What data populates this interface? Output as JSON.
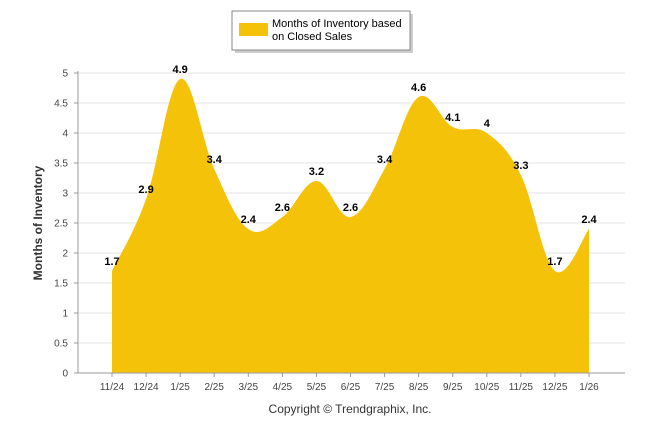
{
  "chart_data": {
    "type": "area",
    "categories": [
      "11/24",
      "12/24",
      "1/25",
      "2/25",
      "3/25",
      "4/25",
      "5/25",
      "6/25",
      "7/25",
      "8/25",
      "9/25",
      "10/25",
      "11/25",
      "12/25",
      "1/26"
    ],
    "series": [
      {
        "name": "Months of Inventory based on Closed Sales",
        "values": [
          1.7,
          2.9,
          4.9,
          3.4,
          2.4,
          2.6,
          3.2,
          2.6,
          3.4,
          4.6,
          4.1,
          4,
          3.3,
          1.7,
          2.4
        ],
        "data_labels": [
          "1.7",
          "2.9",
          "4.9",
          "3.4",
          "2.4",
          "2.6",
          "3.2",
          "2.6",
          "3.4",
          "4.6",
          "4.1",
          "4",
          "3.3",
          "1.7",
          "2.4"
        ],
        "color": "#F5C20A"
      }
    ],
    "legend_lines": [
      "Months of Inventory based",
      "on Closed Sales"
    ],
    "ylabel": "Months of Inventory",
    "yticks": [
      "0",
      "0.5",
      "1",
      "1.5",
      "2",
      "2.5",
      "3",
      "3.5",
      "4",
      "4.5",
      "5"
    ],
    "ylim": [
      0,
      5
    ],
    "grid": true,
    "legend_position": "top-center"
  },
  "copyright": "Copyright © Trendgraphix, Inc.",
  "colors": {
    "area": "#F5C20A",
    "grid": "#e6e6e6",
    "axis": "#999999"
  }
}
